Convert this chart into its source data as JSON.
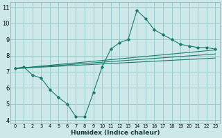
{
  "xlabel": "Humidex (Indice chaleur)",
  "background_color": "#cce8e8",
  "grid_color": "#99cccc",
  "line_color": "#1a7a6e",
  "xlim": [
    -0.5,
    23.5
  ],
  "ylim": [
    3.8,
    11.3
  ],
  "xticks": [
    0,
    1,
    2,
    3,
    4,
    5,
    6,
    7,
    8,
    9,
    10,
    11,
    12,
    13,
    14,
    15,
    16,
    17,
    18,
    19,
    20,
    21,
    22,
    23
  ],
  "yticks": [
    4,
    5,
    6,
    7,
    8,
    9,
    10,
    11
  ],
  "line1_x": [
    0,
    1,
    2,
    3,
    4,
    5,
    6,
    7,
    8,
    9,
    10,
    11,
    12,
    13,
    14,
    15,
    16,
    17,
    18,
    19,
    20,
    21,
    22,
    23
  ],
  "line1_y": [
    7.2,
    7.3,
    6.8,
    6.6,
    5.9,
    5.4,
    5.0,
    4.2,
    4.2,
    5.7,
    7.3,
    8.4,
    8.8,
    9.0,
    10.8,
    10.3,
    9.6,
    9.3,
    9.0,
    8.7,
    8.6,
    8.5,
    8.5,
    8.4
  ],
  "line2_x": [
    0,
    23
  ],
  "line2_y": [
    7.2,
    8.35
  ],
  "line3_x": [
    0,
    23
  ],
  "line3_y": [
    7.2,
    8.1
  ],
  "line4_x": [
    0,
    23
  ],
  "line4_y": [
    7.2,
    7.85
  ]
}
